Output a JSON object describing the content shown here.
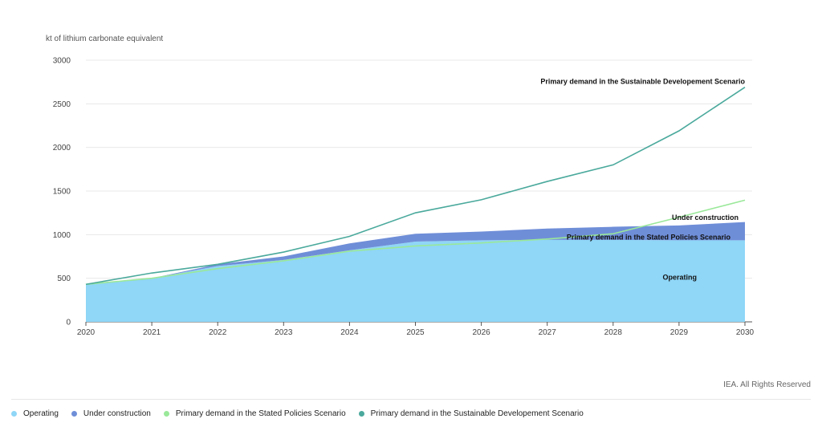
{
  "chart_data": {
    "type": "area",
    "ylabel": "kt of lithium carbonate equivalent",
    "x": [
      "2020",
      "2021",
      "2022",
      "2023",
      "2024",
      "2025",
      "2026",
      "2027",
      "2028",
      "2029",
      "2030"
    ],
    "ylim": [
      0,
      3000
    ],
    "yticks": [
      "0",
      "500",
      "1000",
      "1500",
      "2000",
      "2500",
      "3000"
    ],
    "grid": true,
    "legend_position": "bottom",
    "series": [
      {
        "name": "Operating",
        "kind": "area",
        "color": "#8fd6f7",
        "values": [
          430,
          500,
          640,
          710,
          820,
          920,
          935,
          940,
          940,
          935,
          935
        ]
      },
      {
        "name": "Under construction",
        "kind": "area",
        "color": "#6f8ed8",
        "values": [
          0,
          0,
          20,
          40,
          80,
          90,
          100,
          130,
          150,
          170,
          210
        ]
      },
      {
        "name": "Primary demand in the Stated Policies Scenario",
        "kind": "line",
        "color": "#9ae89a",
        "values": [
          430,
          500,
          610,
          700,
          810,
          870,
          905,
          950,
          1010,
          1200,
          1395
        ]
      },
      {
        "name": "Primary demand in the Sustainable Developement Scenario",
        "kind": "line",
        "color": "#4aa99c",
        "values": [
          430,
          560,
          660,
          800,
          980,
          1250,
          1400,
          1610,
          1800,
          2190,
          2690
        ]
      }
    ],
    "annotations": [
      {
        "text": "Primary demand in the Sustainable Developement Scenario",
        "x": "2030",
        "y": 2690
      },
      {
        "text": "Under construction",
        "x": "2030",
        "y": 1140
      },
      {
        "text": "Primary demand in the Stated Policies Scenario",
        "x": "2030",
        "y": 1000
      },
      {
        "text": "Operating",
        "x": "2030",
        "y": 500
      }
    ]
  },
  "credit": "IEA. All Rights Reserved"
}
